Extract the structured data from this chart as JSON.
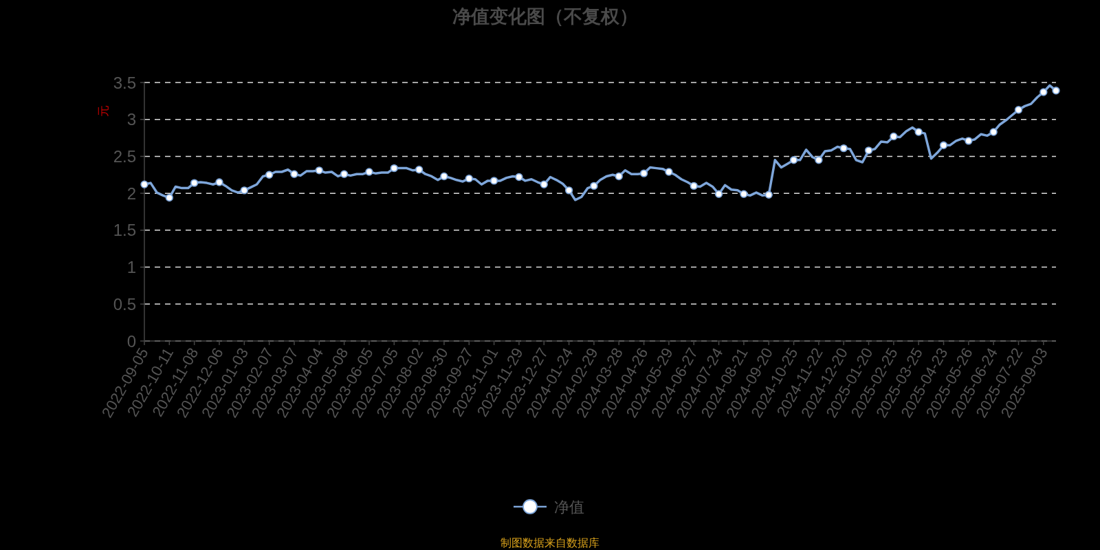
{
  "chart_data": {
    "type": "line",
    "title": "净值变化图（不复权）",
    "ylabel": "元",
    "categories": [
      "2022-09-05",
      null,
      null,
      null,
      "2022-10-11",
      null,
      null,
      null,
      "2022-11-08",
      null,
      null,
      null,
      "2022-12-06",
      null,
      null,
      null,
      "2023-01-03",
      null,
      null,
      null,
      "2023-02-07",
      null,
      null,
      null,
      "2023-03-07",
      null,
      null,
      null,
      "2023-04-04",
      null,
      null,
      null,
      "2023-05-08",
      null,
      null,
      null,
      "2023-06-05",
      null,
      null,
      null,
      "2023-07-05",
      null,
      null,
      null,
      "2023-08-02",
      null,
      null,
      null,
      "2023-08-30",
      null,
      null,
      null,
      "2023-09-27",
      null,
      null,
      null,
      "2023-11-01",
      null,
      null,
      null,
      "2023-11-29",
      null,
      null,
      null,
      "2023-12-27",
      null,
      null,
      null,
      "2024-01-24",
      null,
      null,
      null,
      "2024-02-29",
      null,
      null,
      null,
      "2024-03-28",
      null,
      null,
      null,
      "2024-04-26",
      null,
      null,
      null,
      "2024-05-29",
      null,
      null,
      null,
      "2024-06-27",
      null,
      null,
      null,
      "2024-07-24",
      null,
      null,
      null,
      "2024-08-21",
      null,
      null,
      null,
      "2024-09-20",
      null,
      null,
      null,
      "2024-10-25",
      null,
      null,
      null,
      "2024-11-22",
      null,
      null,
      null,
      "2024-12-20",
      null,
      null,
      null,
      "2025-01-20",
      null,
      null,
      null,
      "2025-02-25",
      null,
      null,
      null,
      "2025-03-25",
      null,
      null,
      null,
      "2025-04-23",
      null,
      null,
      null,
      "2025-05-26",
      null,
      null,
      null,
      "2025-06-24",
      null,
      null,
      null,
      "2025-07-22",
      null,
      null,
      null,
      "2025-09-03",
      null,
      null
    ],
    "series": [
      {
        "name": "净值",
        "color": "#7ea6da",
        "marker": "none",
        "values": [
          2.12,
          2.14,
          2.01,
          1.97,
          1.94,
          2.09,
          2.07,
          2.07,
          2.14,
          2.15,
          2.14,
          2.12,
          2.15,
          2.1,
          2.04,
          2.01,
          2.04,
          2.08,
          2.12,
          2.23,
          2.25,
          2.29,
          2.29,
          2.32,
          2.26,
          2.24,
          2.3,
          2.3,
          2.31,
          2.28,
          2.29,
          2.23,
          2.26,
          2.24,
          2.26,
          2.26,
          2.29,
          2.27,
          2.28,
          2.28,
          2.34,
          2.34,
          2.34,
          2.31,
          2.32,
          2.26,
          2.23,
          2.18,
          2.23,
          2.21,
          2.18,
          2.16,
          2.2,
          2.19,
          2.12,
          2.17,
          2.17,
          2.17,
          2.21,
          2.23,
          2.22,
          2.17,
          2.19,
          2.15,
          2.12,
          2.22,
          2.18,
          2.13,
          2.04,
          1.91,
          1.95,
          2.07,
          2.1,
          2.18,
          2.23,
          2.25,
          2.23,
          2.31,
          2.26,
          2.26,
          2.27,
          2.35,
          2.34,
          2.33,
          2.29,
          2.25,
          2.19,
          2.15,
          2.1,
          2.09,
          2.14,
          2.09,
          1.99,
          2.11,
          2.05,
          2.04,
          1.99,
          1.97,
          2.01,
          1.97,
          1.98,
          2.45,
          2.35,
          2.4,
          2.45,
          2.45,
          2.59,
          2.49,
          2.45,
          2.57,
          2.58,
          2.63,
          2.61,
          2.6,
          2.45,
          2.42,
          2.58,
          2.6,
          2.7,
          2.69,
          2.77,
          2.76,
          2.84,
          2.89,
          2.83,
          2.81,
          2.47,
          2.55,
          2.65,
          2.65,
          2.71,
          2.74,
          2.71,
          2.73,
          2.8,
          2.78,
          2.83,
          2.93,
          2.99,
          3.06,
          3.13,
          3.18,
          3.21,
          3.3,
          3.37,
          3.46,
          3.39
        ]
      },
      {
        "type": "scatter",
        "color": "#ffffff",
        "values": [
          2.12,
          null,
          null,
          null,
          1.94,
          null,
          null,
          null,
          2.14,
          null,
          null,
          null,
          2.15,
          null,
          null,
          null,
          2.04,
          null,
          null,
          null,
          2.25,
          null,
          null,
          null,
          2.26,
          null,
          null,
          null,
          2.31,
          null,
          null,
          null,
          2.26,
          null,
          null,
          null,
          2.29,
          null,
          null,
          null,
          2.34,
          null,
          null,
          null,
          2.32,
          null,
          null,
          null,
          2.23,
          null,
          null,
          null,
          2.2,
          null,
          null,
          null,
          2.17,
          null,
          null,
          null,
          2.22,
          null,
          null,
          null,
          2.12,
          null,
          null,
          null,
          2.04,
          null,
          null,
          null,
          2.1,
          null,
          null,
          null,
          2.23,
          null,
          null,
          null,
          2.27,
          null,
          null,
          null,
          2.29,
          null,
          null,
          null,
          2.1,
          null,
          null,
          null,
          1.99,
          null,
          null,
          null,
          1.99,
          null,
          null,
          null,
          1.98,
          null,
          null,
          null,
          2.45,
          null,
          null,
          null,
          2.45,
          null,
          null,
          null,
          2.61,
          null,
          null,
          null,
          2.58,
          null,
          null,
          null,
          2.77,
          null,
          null,
          null,
          2.83,
          null,
          null,
          null,
          2.65,
          null,
          null,
          null,
          2.71,
          null,
          null,
          null,
          2.83,
          null,
          null,
          null,
          3.13,
          null,
          null,
          null,
          3.37,
          null,
          3.39
        ]
      }
    ],
    "ylim": [
      0,
      3.5
    ],
    "yticks": [
      0,
      0.5,
      1,
      1.5,
      2,
      2.5,
      3,
      3.5
    ],
    "grid": "y",
    "legend": "bottom",
    "marker": "circle",
    "line_style": "solid",
    "annotations": [
      "制图数据来自数据库"
    ]
  }
}
